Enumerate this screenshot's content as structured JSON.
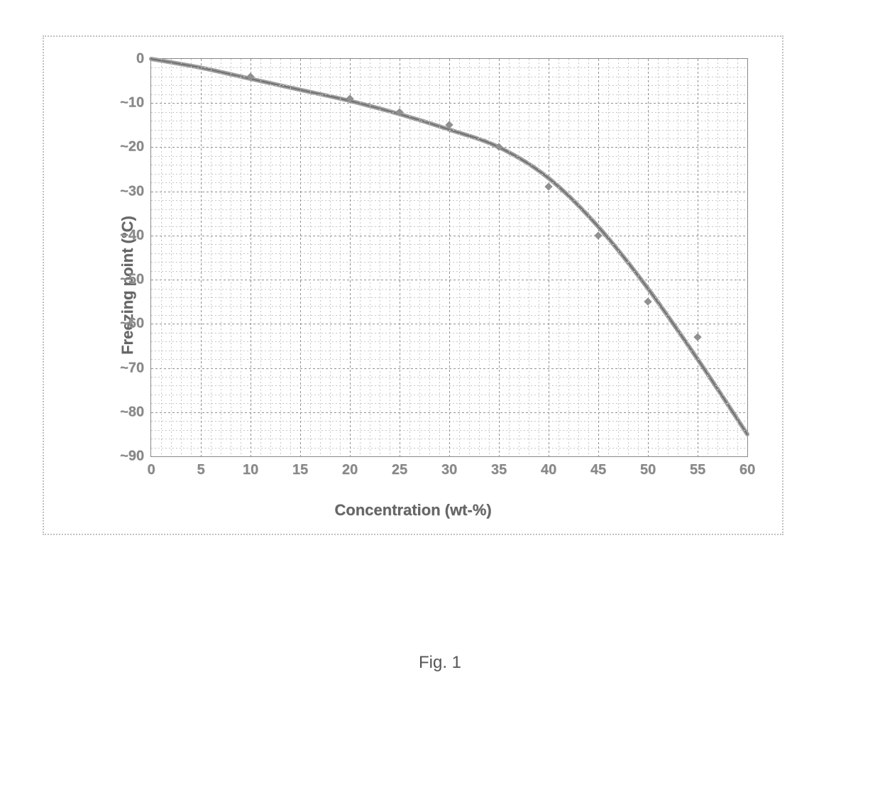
{
  "chart": {
    "type": "line",
    "xlabel": "Concentration (wt-%)",
    "ylabel": "Freezing point  (°C)",
    "caption": "Fig. 1",
    "xlim": [
      0,
      60
    ],
    "ylim": [
      -90,
      0
    ],
    "xtick_step": 5,
    "ytick_step": 10,
    "x_minor_per_major": 5,
    "y_minor_per_major": 5,
    "x_ticks": [
      0,
      5,
      10,
      15,
      20,
      25,
      30,
      35,
      40,
      45,
      50,
      55,
      60
    ],
    "y_ticks": [
      0,
      -10,
      -20,
      -30,
      -40,
      -50,
      -60,
      -70,
      -80,
      -90
    ],
    "series": {
      "curve_x": [
        0,
        5,
        10,
        15,
        20,
        25,
        30,
        35,
        40,
        45,
        50,
        55,
        60
      ],
      "curve_y": [
        0,
        -2,
        -4.5,
        -7,
        -9.5,
        -12.5,
        -16,
        -20,
        -27,
        -38,
        -52,
        -68,
        -85
      ],
      "markers_x": [
        10,
        20,
        25,
        30,
        35,
        40,
        45,
        50,
        55
      ],
      "markers_y": [
        -4,
        -9,
        -12,
        -15,
        -20,
        -29,
        -40,
        -55,
        -63
      ]
    },
    "colors": {
      "background": "#ffffff",
      "border_dotted": "#c0c0c0",
      "plot_border": "#888888",
      "grid_major": "#909090",
      "grid_minor": "#c8c8c8",
      "line_outer": "#a0a0a0",
      "line_inner": "#707070",
      "marker": "#909090",
      "tick_text": "#888888",
      "label_text": "#666666",
      "caption_text": "#555555"
    },
    "line_width_outer": 6,
    "line_width_inner": 2,
    "tick_fontsize": 20,
    "label_fontsize": 22,
    "caption_fontsize": 24,
    "marker_size": 8
  }
}
